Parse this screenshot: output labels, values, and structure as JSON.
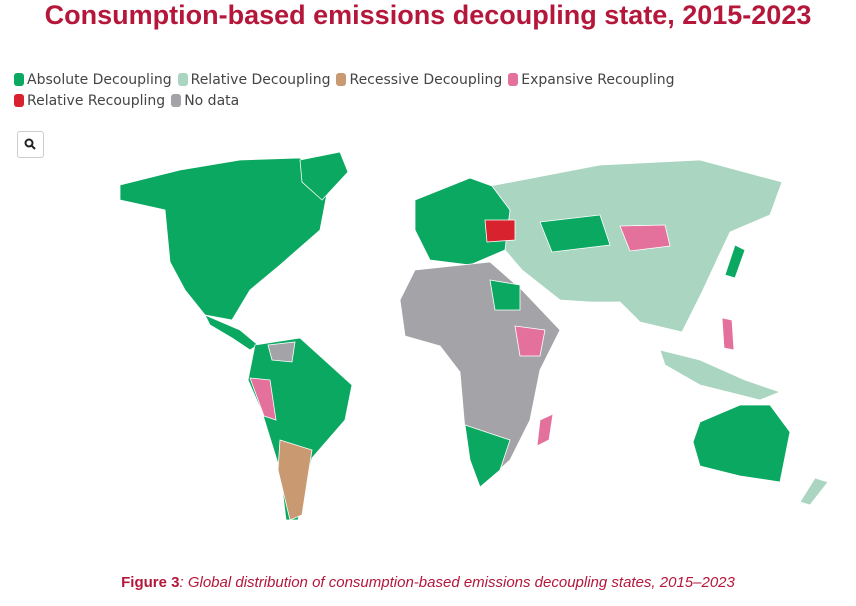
{
  "title": "Consumption-based emissions decoupling state, 2015-2023",
  "legend": [
    {
      "name": "Absolute Decoupling",
      "color": "#0aa860"
    },
    {
      "name": "Relative Decoupling",
      "color": "#a9d5c1"
    },
    {
      "name": "Recessive Decoupling",
      "color": "#c99a72"
    },
    {
      "name": "Expansive Recoupling",
      "color": "#e4719c"
    },
    {
      "name": "Relative Recoupling",
      "color": "#d8232e"
    },
    {
      "name": "No data",
      "color": "#a3a3a8"
    }
  ],
  "caption": {
    "label": "Figure 3",
    "text": ": Global distribution of consumption-based emissions decoupling states, 2015–2023"
  }
}
